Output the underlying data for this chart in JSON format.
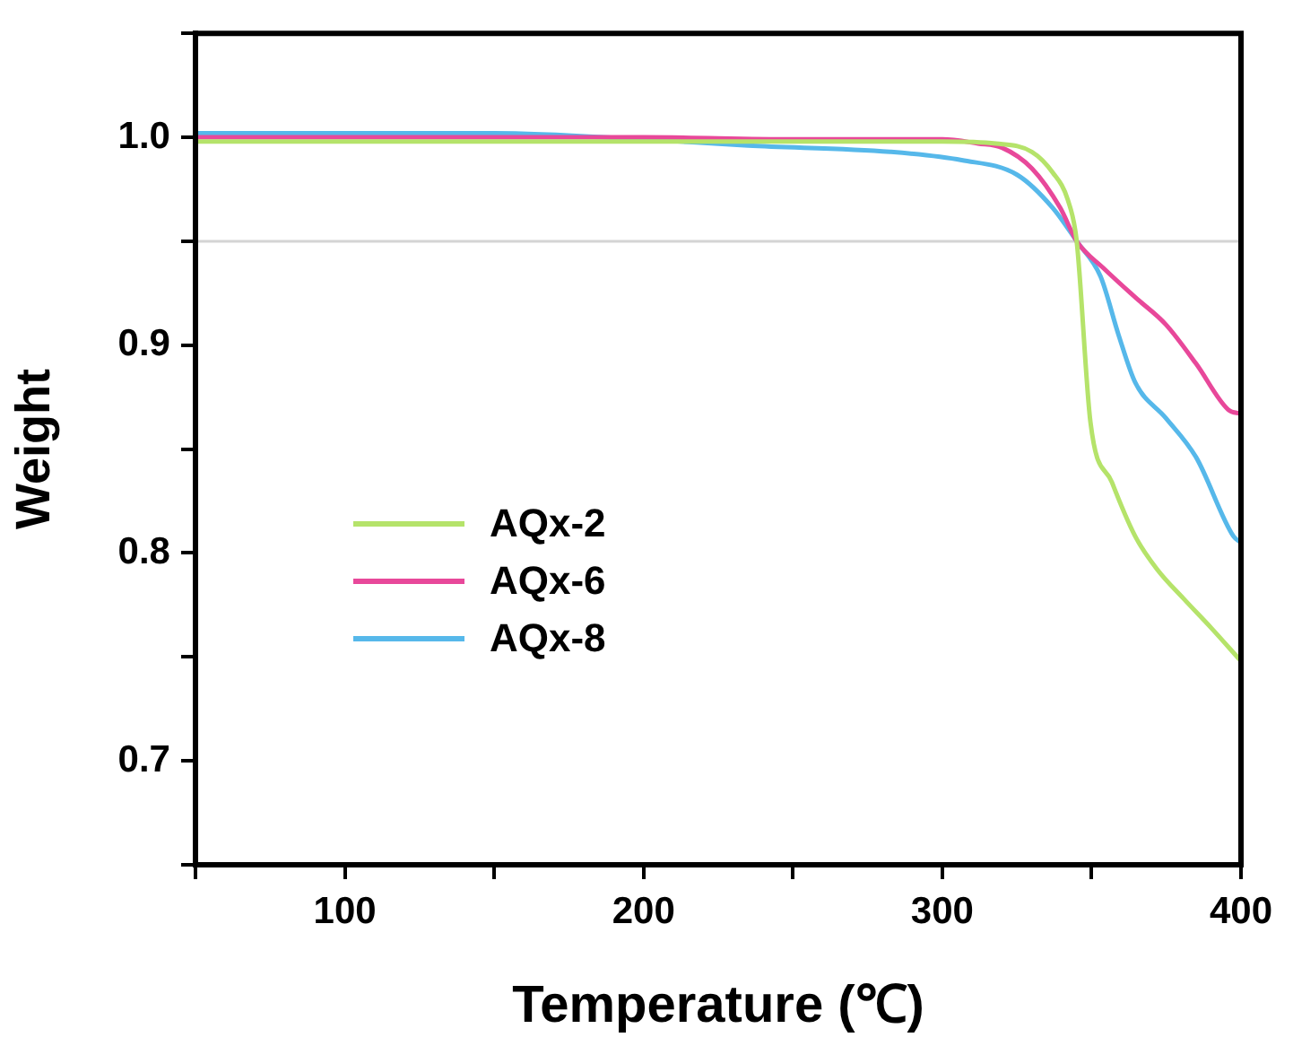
{
  "chart_data": {
    "type": "line",
    "xlabel": "Temperature (℃)",
    "ylabel": "Weight",
    "xlim": [
      50,
      400
    ],
    "ylim": [
      0.65,
      1.05
    ],
    "xticks": [
      {
        "value": 50,
        "label": null
      },
      100,
      {
        "value": 150,
        "label": null
      },
      200,
      {
        "value": 250,
        "label": null
      },
      300,
      {
        "value": 350,
        "label": null
      },
      400
    ],
    "yticks": [
      {
        "value": 0.65,
        "label": null
      },
      0.7,
      {
        "value": 0.75,
        "label": null
      },
      0.8,
      {
        "value": 0.85,
        "label": null
      },
      0.9,
      {
        "value": 0.95,
        "label": null
      },
      {
        "value": 1,
        "label": "1.0"
      },
      {
        "value": 1.05,
        "label": null
      }
    ],
    "legend": "bottom left",
    "marker": "none",
    "line_style": "solid",
    "ref_lines": [
      {
        "axis": "y",
        "value": 0.95,
        "color": "#d4d4d4"
      }
    ],
    "series": [
      {
        "name": "AQx-2",
        "color": "#b5e36a",
        "x": [
          50,
          100,
          150,
          200,
          250,
          300,
          318,
          330,
          337,
          342,
          345,
          349.6,
          356.8,
          364.6,
          372,
          380.8,
          390,
          400
        ],
        "values": [
          0.998,
          0.998,
          0.998,
          0.998,
          0.998,
          0.998,
          0.997,
          0.993,
          0.983,
          0.97,
          0.95,
          0.863,
          0.834,
          0.808,
          0.792,
          0.778,
          0.764,
          0.748
        ]
      },
      {
        "name": "AQx-6",
        "color": "#e8489a",
        "x": [
          50,
          100,
          150,
          200,
          250,
          300,
          312,
          320,
          330,
          339.5,
          345,
          354,
          364.6,
          374.8,
          385,
          395.7,
          400
        ],
        "values": [
          1.0,
          1.0,
          1.0,
          1.0,
          0.999,
          0.999,
          0.997,
          0.995,
          0.985,
          0.966,
          0.95,
          0.937,
          0.923,
          0.91,
          0.891,
          0.869,
          0.867
        ]
      },
      {
        "name": "AQx-8",
        "color": "#56b8ea",
        "x": [
          50,
          100,
          150,
          200,
          235,
          282.5,
          306.5,
          325,
          337,
          345,
          353,
          359,
          364.6,
          374.8,
          385,
          397.5,
          400
        ],
        "values": [
          1.002,
          1.002,
          1.002,
          0.999,
          0.996,
          0.993,
          0.989,
          0.982,
          0.966,
          0.95,
          0.933,
          0.905,
          0.882,
          0.865,
          0.846,
          0.808,
          0.805
        ]
      }
    ]
  }
}
